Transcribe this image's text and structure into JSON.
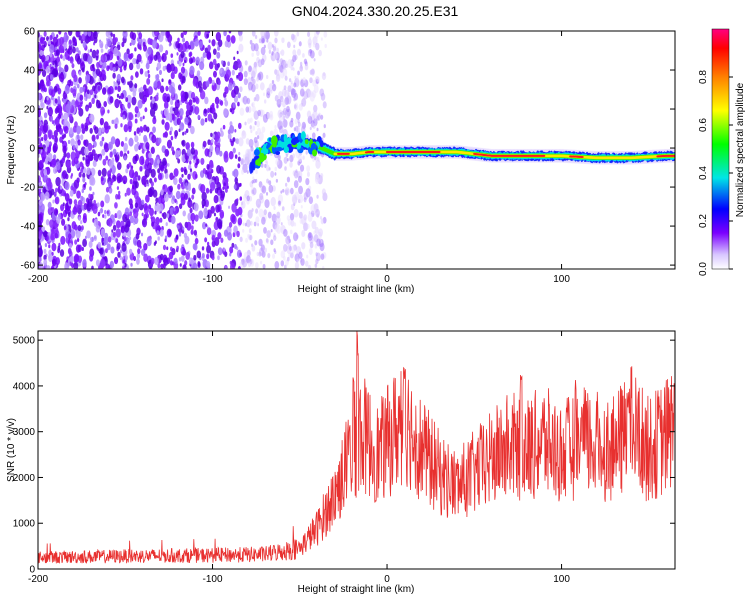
{
  "title": "GN04.2024.330.20.25.E31",
  "chart_data": [
    {
      "type": "heatmap",
      "xlabel": "Height of straight line (km)",
      "ylabel": "Frequency (Hz)",
      "xlim": [
        -200,
        165
      ],
      "ylim": [
        -62,
        60
      ],
      "xticks": [
        -200,
        -100,
        0,
        100
      ],
      "yticks": [
        -60,
        -40,
        -20,
        0,
        20,
        40,
        60
      ],
      "colorbar": {
        "label": "Normalized spectral amplitude",
        "range": [
          0,
          1
        ],
        "ticks": [
          0.0,
          0.2,
          0.4,
          0.6,
          0.8
        ]
      },
      "signal_track": [
        {
          "x": -78,
          "y": -10
        },
        {
          "x": -70,
          "y": 0
        },
        {
          "x": -60,
          "y": 2
        },
        {
          "x": -50,
          "y": 3
        },
        {
          "x": -40,
          "y": 1
        },
        {
          "x": -30,
          "y": -3
        },
        {
          "x": -20,
          "y": -3
        },
        {
          "x": -10,
          "y": -2
        },
        {
          "x": 0,
          "y": -2
        },
        {
          "x": 20,
          "y": -2
        },
        {
          "x": 40,
          "y": -2
        },
        {
          "x": 60,
          "y": -4
        },
        {
          "x": 80,
          "y": -4
        },
        {
          "x": 100,
          "y": -4
        },
        {
          "x": 120,
          "y": -5
        },
        {
          "x": 140,
          "y": -5
        },
        {
          "x": 160,
          "y": -4
        }
      ],
      "noise_region_x": [
        -200,
        -45
      ]
    },
    {
      "type": "line",
      "xlabel": "Height of straight line (km)",
      "ylabel": "SNR (10 * v/v)",
      "xlim": [
        -200,
        165
      ],
      "ylim": [
        0,
        5200
      ],
      "xticks": [
        -200,
        -100,
        0,
        100
      ],
      "yticks": [
        0,
        1000,
        2000,
        3000,
        4000,
        5000
      ],
      "series_color": "#e8302f",
      "envelope": [
        {
          "x": -200,
          "y": 250
        },
        {
          "x": -150,
          "y": 280
        },
        {
          "x": -100,
          "y": 300
        },
        {
          "x": -70,
          "y": 320
        },
        {
          "x": -50,
          "y": 450
        },
        {
          "x": -40,
          "y": 900
        },
        {
          "x": -30,
          "y": 1600
        },
        {
          "x": -20,
          "y": 2600
        },
        {
          "x": -15,
          "y": 3000
        },
        {
          "x": -5,
          "y": 2500
        },
        {
          "x": 10,
          "y": 3300
        },
        {
          "x": 20,
          "y": 2600
        },
        {
          "x": 30,
          "y": 2100
        },
        {
          "x": 40,
          "y": 1800
        },
        {
          "x": 50,
          "y": 2100
        },
        {
          "x": 60,
          "y": 2400
        },
        {
          "x": 70,
          "y": 2700
        },
        {
          "x": 80,
          "y": 2600
        },
        {
          "x": 90,
          "y": 2800
        },
        {
          "x": 100,
          "y": 2500
        },
        {
          "x": 110,
          "y": 2800
        },
        {
          "x": 120,
          "y": 2700
        },
        {
          "x": 130,
          "y": 2600
        },
        {
          "x": 140,
          "y": 3100
        },
        {
          "x": 150,
          "y": 2600
        },
        {
          "x": 160,
          "y": 2900
        },
        {
          "x": 165,
          "y": 3200
        }
      ],
      "peaks": [
        {
          "x": -19,
          "y": 4300
        },
        {
          "x": -17,
          "y": 5200
        },
        {
          "x": 10,
          "y": 4400
        },
        {
          "x": 77,
          "y": 4400
        },
        {
          "x": 108,
          "y": 4200
        },
        {
          "x": 138,
          "y": 3900
        },
        {
          "x": 165,
          "y": 4200
        }
      ]
    }
  ]
}
